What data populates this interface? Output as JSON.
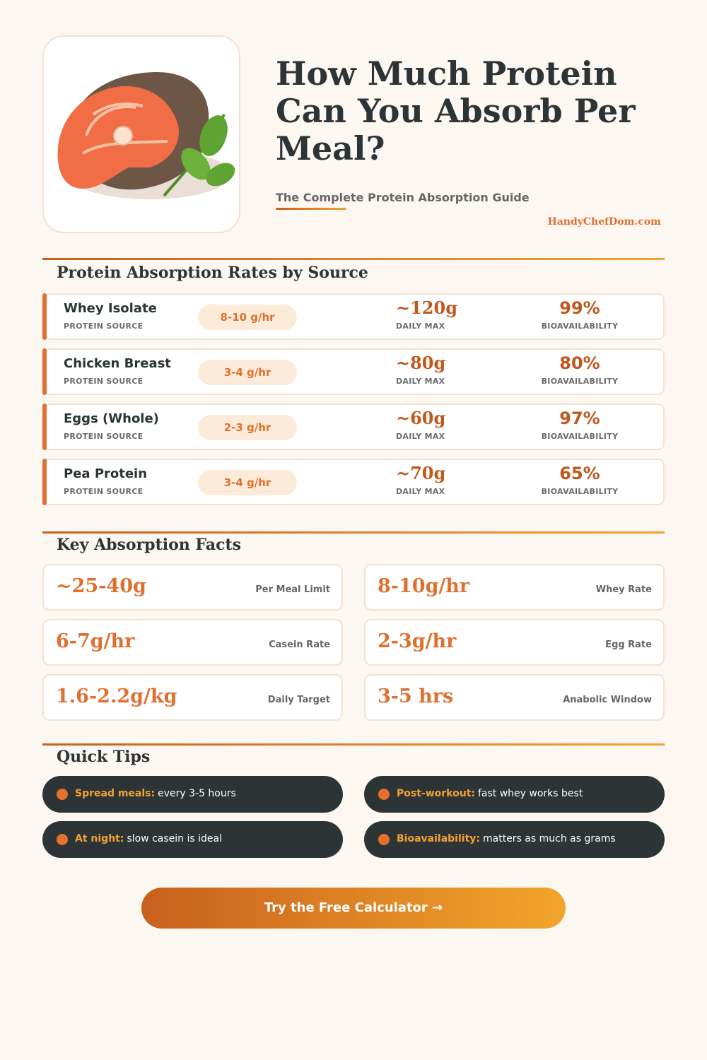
{
  "header": {
    "title": "How Much Protein Can You Absorb Per Meal?",
    "subtitle": "The Complete Protein Absorption Guide",
    "site": "HandyChefDom.com"
  },
  "sources": {
    "title": "Protein Absorption Rates by Source",
    "rows": [
      {
        "name": "Whey Isolate",
        "kind": "PROTEIN SOURCE",
        "rate": "8-10 g/hr",
        "daily": "~120g",
        "daily_label": "DAILY MAX",
        "bio": "99%",
        "bio_label": "BIOAVAILABILITY"
      },
      {
        "name": "Chicken Breast",
        "kind": "PROTEIN SOURCE",
        "rate": "3-4 g/hr",
        "daily": "~80g",
        "daily_label": "DAILY MAX",
        "bio": "80%",
        "bio_label": "BIOAVAILABILITY"
      },
      {
        "name": "Eggs (Whole)",
        "kind": "PROTEIN SOURCE",
        "rate": "2-3 g/hr",
        "daily": "~60g",
        "daily_label": "DAILY MAX",
        "bio": "97%",
        "bio_label": "BIOAVAILABILITY"
      },
      {
        "name": "Pea Protein",
        "kind": "PROTEIN SOURCE",
        "rate": "3-4 g/hr",
        "daily": "~70g",
        "daily_label": "DAILY MAX",
        "bio": "65%",
        "bio_label": "BIOAVAILABILITY"
      }
    ]
  },
  "facts": {
    "title": "Key Absorption Facts",
    "items": [
      {
        "value": "~25-40g",
        "label": "Per Meal Limit"
      },
      {
        "value": "8-10g/hr",
        "label": "Whey Rate"
      },
      {
        "value": "6-7g/hr",
        "label": "Casein Rate"
      },
      {
        "value": "2-3g/hr",
        "label": "Egg Rate"
      },
      {
        "value": "1.6-2.2g/kg",
        "label": "Daily Target"
      },
      {
        "value": "3-5 hrs",
        "label": "Anabolic Window"
      }
    ]
  },
  "tips": {
    "title": "Quick Tips",
    "items": [
      {
        "lead": "Spread meals:",
        "text": "every 3-5 hours"
      },
      {
        "lead": "Post-workout:",
        "text": "fast whey works best"
      },
      {
        "lead": "At night:",
        "text": "slow casein is ideal"
      },
      {
        "lead": "Bioavailability:",
        "text": "matters as much as grams"
      }
    ]
  },
  "cta": "Try the Free Calculator →"
}
